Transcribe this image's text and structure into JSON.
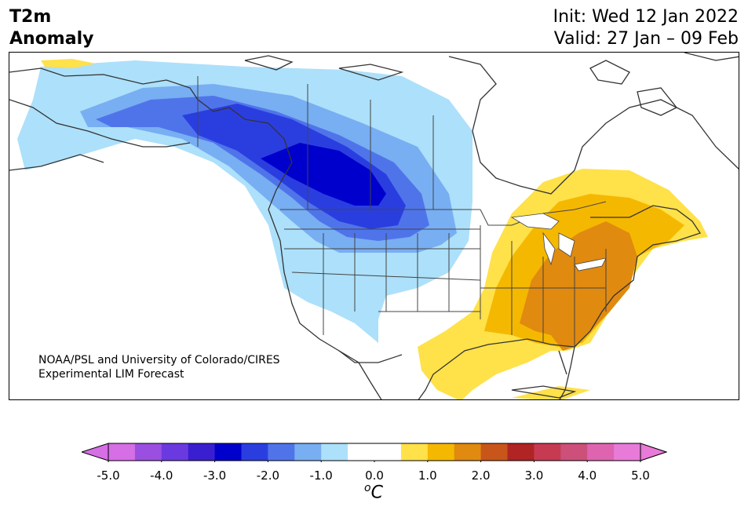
{
  "title": {
    "line1": "T2m",
    "line2": "Anomaly",
    "init": "Init: Wed 12 Jan 2022",
    "valid": "Valid: 27 Jan – 09 Feb"
  },
  "credit": {
    "line1": "NOAA/PSL and University of Colorado/CIRES",
    "line2": "Experimental LIM Forecast"
  },
  "colorbar": {
    "unit_base": "C",
    "unit_sup": "o",
    "ticks": [
      "-5.0",
      "-4.0",
      "-3.0",
      "-2.0",
      "-1.0",
      "0.0",
      "1.0",
      "2.0",
      "3.0",
      "4.0",
      "5.0"
    ],
    "under_color": "#d66ee6",
    "over_color": "#e87ad8",
    "colors": [
      "#d66ee6",
      "#9a4fe0",
      "#6a3ae0",
      "#3a1fd0",
      "#0000cc",
      "#2a3ee0",
      "#4f74ea",
      "#78aef2",
      "#ade0fa",
      "#ffffff",
      "#ffffff",
      "#ffe14a",
      "#f5b800",
      "#e08a10",
      "#c8561a",
      "#b02424",
      "#c63a52",
      "#cc507a",
      "#de64b0",
      "#e87ad8"
    ]
  },
  "map": {
    "anomaly_colors": {
      "neg_0_5": "#ade0fa",
      "neg_1_0": "#78aef2",
      "neg_1_5": "#4f74ea",
      "neg_2_0": "#2a3ee0",
      "neg_2_5": "#0000cc",
      "pos_0_5": "#ffe14a",
      "pos_1_0": "#f5b800",
      "pos_1_5": "#e08a10"
    }
  }
}
